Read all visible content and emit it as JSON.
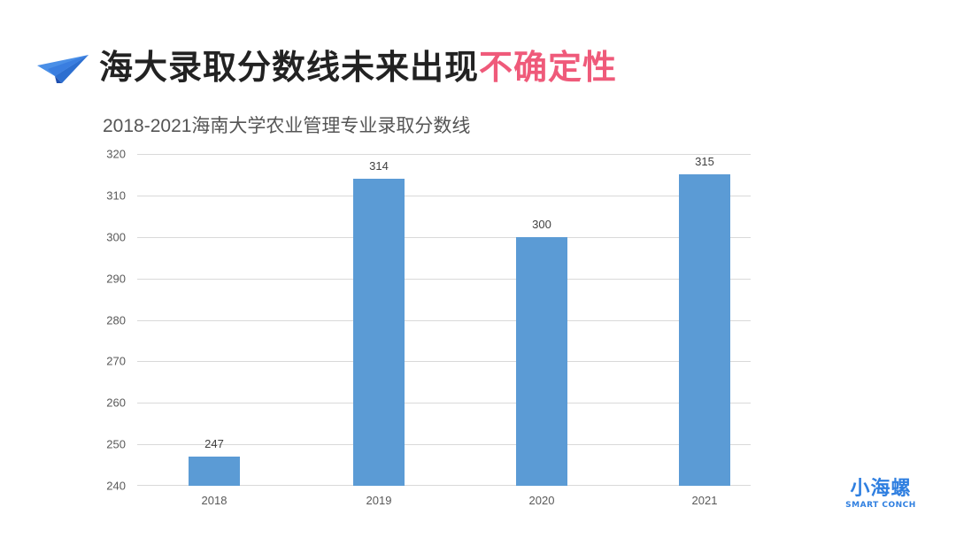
{
  "slide": {
    "heading": "海大录取分数线未来出现",
    "heading_accent": "不确定性",
    "heading_icon": "paper-plane-icon",
    "accent_color": "#ef5a7a"
  },
  "logo": {
    "main": "小海螺",
    "sub": "SMART CONCH",
    "color": "#2f7fe0"
  },
  "chart_data": {
    "type": "bar",
    "title": "2018-2021海南大学农业管理专业录取分数线",
    "categories": [
      "2018",
      "2019",
      "2020",
      "2021"
    ],
    "values": [
      247,
      314,
      300,
      315
    ],
    "data_labels": [
      "247",
      "314",
      "300",
      "315"
    ],
    "xlabel": "",
    "ylabel": "",
    "ylim": [
      240,
      320
    ],
    "yticks": [
      "320",
      "310",
      "300",
      "290",
      "280",
      "270",
      "260",
      "250",
      "240"
    ],
    "grid": true,
    "legend": null,
    "bar_color": "#5b9bd5"
  }
}
